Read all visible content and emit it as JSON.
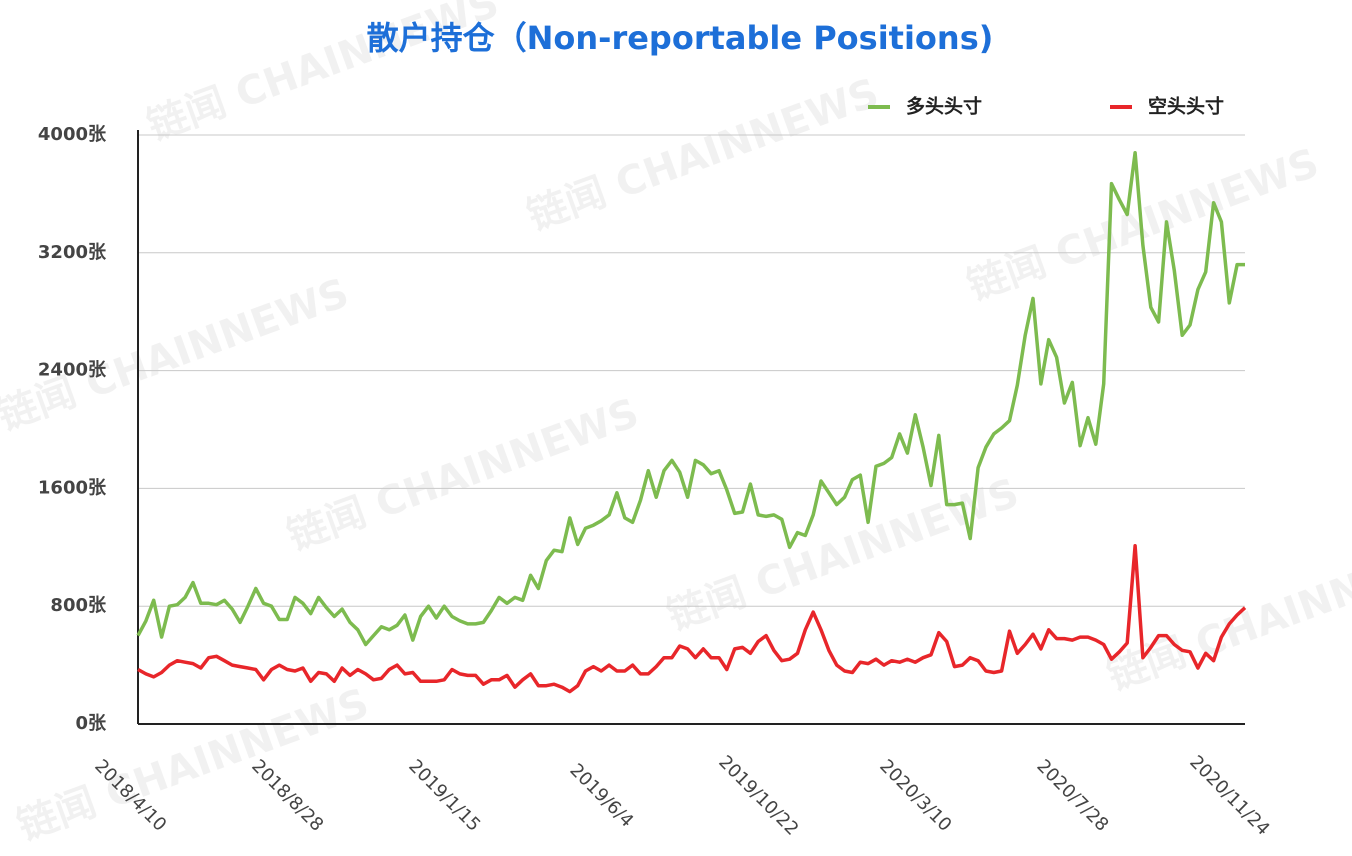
{
  "chart_data": {
    "type": "line",
    "title": "散户持仓（Non-reportable Positions)",
    "watermark": "链闻 CHAINNEWS",
    "categories": [
      "2018/4/10",
      null,
      null,
      null,
      null,
      null,
      null,
      null,
      null,
      null,
      null,
      null,
      null,
      null,
      null,
      null,
      null,
      null,
      null,
      null,
      "2018/8/28",
      null,
      null,
      null,
      null,
      null,
      null,
      null,
      null,
      null,
      null,
      null,
      null,
      null,
      null,
      null,
      null,
      null,
      null,
      null,
      "2019/1/15",
      null,
      null,
      null,
      null,
      null,
      null,
      null,
      null,
      null,
      null,
      null,
      null,
      null,
      null,
      null,
      null,
      null,
      null,
      null,
      "2019/6/4",
      null,
      null,
      null,
      null,
      null,
      null,
      null,
      null,
      null,
      null,
      null,
      null,
      null,
      null,
      null,
      null,
      null,
      null,
      null,
      "2019/10/22",
      null,
      null,
      null,
      null,
      null,
      null,
      null,
      null,
      null,
      null,
      null,
      null,
      null,
      null,
      null,
      null,
      null,
      null,
      null,
      "2020/3/10",
      null,
      null,
      null,
      null,
      null,
      null,
      null,
      null,
      null,
      null,
      null,
      null,
      null,
      null,
      null,
      null,
      null,
      null,
      null,
      "2020/7/28",
      null,
      null,
      null,
      null,
      null,
      null,
      null,
      null,
      null,
      null,
      null,
      null,
      null,
      null,
      null,
      null,
      null,
      null,
      null,
      "2020/11/24",
      null
    ],
    "series": [
      {
        "name": "多头头寸",
        "color": "#7dbb4f",
        "values": [
          600,
          700,
          840,
          590,
          800,
          810,
          860,
          960,
          820,
          820,
          810,
          840,
          780,
          690,
          800,
          920,
          820,
          800,
          710,
          710,
          860,
          820,
          750,
          860,
          790,
          730,
          780,
          690,
          640,
          540,
          600,
          660,
          640,
          670,
          740,
          570,
          730,
          800,
          720,
          800,
          730,
          700,
          680,
          680,
          690,
          770,
          860,
          820,
          860,
          840,
          1010,
          920,
          1110,
          1180,
          1170,
          1400,
          1220,
          1330,
          1350,
          1380,
          1420,
          1570,
          1400,
          1370,
          1520,
          1720,
          1540,
          1720,
          1790,
          1710,
          1540,
          1790,
          1760,
          1700,
          1720,
          1590,
          1430,
          1440,
          1630,
          1420,
          1410,
          1420,
          1390,
          1200,
          1300,
          1280,
          1420,
          1650,
          1570,
          1490,
          1540,
          1660,
          1690,
          1370,
          1750,
          1770,
          1810,
          1970,
          1840,
          2100,
          1880,
          1620,
          1960,
          1490,
          1490,
          1500,
          1260,
          1740,
          1880,
          1970,
          2010,
          2060,
          2300,
          2640,
          2890,
          2310,
          2610,
          2490,
          2180,
          2320,
          1890,
          2080,
          1900,
          2310,
          3670,
          3560,
          3460,
          3880,
          3250,
          2830,
          2730,
          3410,
          3080,
          2640,
          2710,
          2950,
          3070,
          3540,
          3410,
          2860,
          3120,
          3120
        ]
      },
      {
        "name": "空头头寸",
        "color": "#e8262a",
        "values": [
          370,
          340,
          320,
          350,
          400,
          430,
          420,
          410,
          380,
          450,
          460,
          430,
          400,
          390,
          380,
          370,
          300,
          370,
          400,
          370,
          360,
          380,
          290,
          350,
          340,
          290,
          380,
          330,
          370,
          340,
          300,
          310,
          370,
          400,
          340,
          350,
          290,
          290,
          290,
          300,
          370,
          340,
          330,
          330,
          270,
          300,
          300,
          330,
          250,
          300,
          340,
          260,
          260,
          270,
          250,
          220,
          260,
          360,
          390,
          360,
          400,
          360,
          360,
          400,
          340,
          340,
          390,
          450,
          450,
          530,
          510,
          450,
          510,
          450,
          450,
          370,
          510,
          520,
          480,
          560,
          600,
          500,
          430,
          440,
          480,
          640,
          760,
          640,
          500,
          400,
          360,
          350,
          420,
          410,
          440,
          400,
          430,
          420,
          440,
          420,
          450,
          470,
          620,
          560,
          390,
          400,
          450,
          430,
          360,
          350,
          360,
          630,
          480,
          540,
          610,
          510,
          640,
          580,
          580,
          570,
          590,
          590,
          570,
          540,
          440,
          490,
          550,
          1210,
          450,
          520,
          600,
          600,
          540,
          500,
          490,
          380,
          480,
          430,
          590,
          680,
          740,
          790
        ]
      }
    ],
    "ylim": [
      0,
      4000
    ],
    "yticks": [
      {
        "value": 0,
        "label": "0张"
      },
      {
        "value": 800,
        "label": "800张"
      },
      {
        "value": 1600,
        "label": "1600张"
      },
      {
        "value": 2400,
        "label": "2400张"
      },
      {
        "value": 3200,
        "label": "3200张"
      },
      {
        "value": 4000,
        "label": "4000张"
      }
    ],
    "grid": true,
    "legend": "top-right"
  }
}
